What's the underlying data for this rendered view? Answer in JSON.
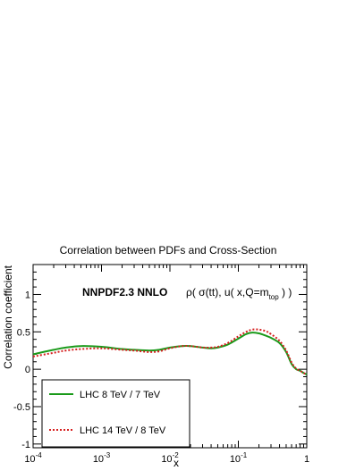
{
  "chart_data": {
    "type": "line",
    "title": "Correlation between PDFs and Cross-Section",
    "xlabel": "x",
    "ylabel": "Correlation coefficient",
    "xscale": "log",
    "xlim": [
      0.0001,
      1
    ],
    "ylim": [
      -1.05,
      1.4
    ],
    "grid": false,
    "legend_placement": "bottom-left",
    "x_ticks": [
      {
        "value": 0.0001,
        "base": "10",
        "exp": "-4"
      },
      {
        "value": 0.001,
        "base": "10",
        "exp": "-3"
      },
      {
        "value": 0.01,
        "base": "10",
        "exp": "-2"
      },
      {
        "value": 0.1,
        "base": "10",
        "exp": "-1"
      },
      {
        "value": 1,
        "base": "1",
        "exp": ""
      }
    ],
    "y_ticks": [
      {
        "value": 1,
        "label": "1"
      },
      {
        "value": 0.5,
        "label": "0.5"
      },
      {
        "value": 0,
        "label": "0"
      },
      {
        "value": -0.5,
        "label": "-0.5"
      },
      {
        "value": -1,
        "label": "-1"
      }
    ],
    "annotations": {
      "pdf_set": "NNPDF2.3 NNLO",
      "observable": "ρ( σ(tt), u( x,Q=m",
      "observable_sub": "top",
      "observable_end": " ) )"
    },
    "series": [
      {
        "name": "LHC 8 TeV / 7 TeV",
        "color": "#1a9a1a",
        "style": "solid",
        "x": [
          0.0001,
          0.0002,
          0.0003,
          0.0005,
          0.001,
          0.002,
          0.003,
          0.005,
          0.007,
          0.01,
          0.015,
          0.02,
          0.03,
          0.04,
          0.05,
          0.07,
          0.1,
          0.13,
          0.16,
          0.2,
          0.25,
          0.3,
          0.4,
          0.5,
          0.6,
          0.7,
          0.8,
          0.9,
          1.0
        ],
        "y": [
          0.2,
          0.26,
          0.29,
          0.31,
          0.3,
          0.27,
          0.26,
          0.25,
          0.26,
          0.29,
          0.31,
          0.31,
          0.29,
          0.28,
          0.29,
          0.33,
          0.41,
          0.47,
          0.49,
          0.48,
          0.45,
          0.42,
          0.35,
          0.23,
          0.07,
          0.0,
          -0.02,
          -0.05,
          -0.07
        ]
      },
      {
        "name": "LHC 14 TeV / 8 TeV",
        "color": "#d62020",
        "style": "dotted",
        "x": [
          0.0001,
          0.0002,
          0.0003,
          0.0005,
          0.001,
          0.002,
          0.003,
          0.005,
          0.007,
          0.01,
          0.015,
          0.02,
          0.03,
          0.04,
          0.05,
          0.07,
          0.1,
          0.13,
          0.16,
          0.2,
          0.25,
          0.3,
          0.4,
          0.5,
          0.6,
          0.7,
          0.8,
          0.9,
          1.0
        ],
        "y": [
          0.17,
          0.22,
          0.25,
          0.27,
          0.28,
          0.26,
          0.25,
          0.23,
          0.24,
          0.28,
          0.31,
          0.31,
          0.29,
          0.29,
          0.3,
          0.35,
          0.44,
          0.5,
          0.53,
          0.53,
          0.51,
          0.47,
          0.38,
          0.25,
          0.09,
          0.01,
          -0.02,
          -0.05,
          -0.07
        ]
      }
    ]
  }
}
